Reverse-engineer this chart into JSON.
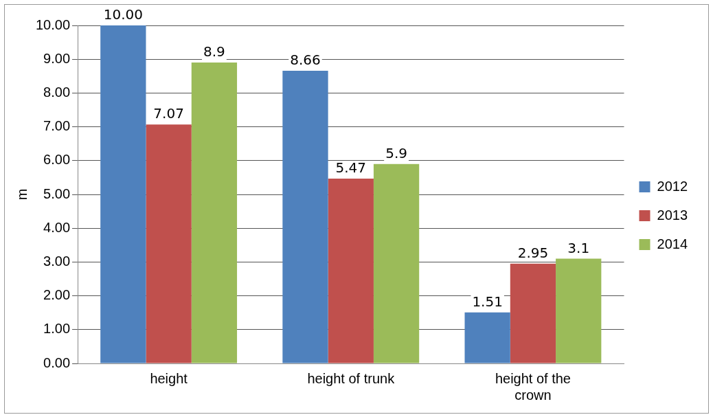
{
  "chart_data": {
    "type": "bar",
    "ylabel": "m",
    "categories": [
      "height",
      "height of trunk",
      "height of the crown"
    ],
    "series": [
      {
        "name": "2012",
        "color": "#4f81bd",
        "values": [
          10.0,
          8.66,
          1.51
        ],
        "value_labels": [
          "10.00",
          "8.66",
          "1.51"
        ]
      },
      {
        "name": "2013",
        "color": "#c0504d",
        "values": [
          7.07,
          5.47,
          2.95
        ],
        "value_labels": [
          "7.07",
          "5.47",
          "2.95"
        ]
      },
      {
        "name": "2014",
        "color": "#9bbb59",
        "values": [
          8.9,
          5.9,
          3.1
        ],
        "value_labels": [
          "8.9",
          "5.9",
          "3.1"
        ]
      }
    ],
    "ylim": [
      0,
      10
    ],
    "yticks": [
      {
        "value": 0,
        "label": "0.00"
      },
      {
        "value": 1,
        "label": "1.00"
      },
      {
        "value": 2,
        "label": "2.00"
      },
      {
        "value": 3,
        "label": "3.00"
      },
      {
        "value": 4,
        "label": "4.00"
      },
      {
        "value": 5,
        "label": "5.00"
      },
      {
        "value": 6,
        "label": "6.00"
      },
      {
        "value": 7,
        "label": "7.00"
      },
      {
        "value": 8,
        "label": "8.00"
      },
      {
        "value": 9,
        "label": "9.00"
      },
      {
        "value": 10,
        "label": "10.00"
      }
    ],
    "grid": "y",
    "legend": "right"
  }
}
